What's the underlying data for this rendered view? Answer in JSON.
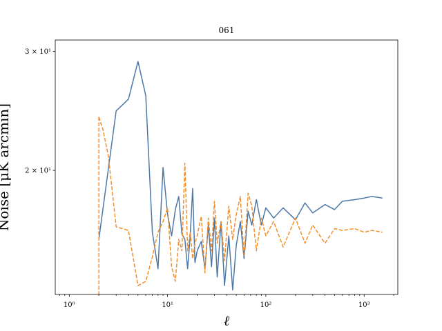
{
  "chart_data": {
    "type": "line",
    "title": "061",
    "xlabel": "ℓ",
    "ylabel": "Noise [μK arcmin]",
    "x_scale": "log",
    "y_scale": "log",
    "xlim": [
      0.72,
      2200
    ],
    "ylim": [
      13.1,
      31.2
    ],
    "grid": false,
    "legend": "none",
    "x_ticks": [
      {
        "value": 1,
        "label": "10⁰"
      },
      {
        "value": 10,
        "label": "10¹"
      },
      {
        "value": 100,
        "label": "10²"
      },
      {
        "value": 1000,
        "label": "10³"
      }
    ],
    "y_ticks": [
      {
        "value": 20,
        "label": "2 × 10¹"
      },
      {
        "value": 30,
        "label": "3 × 10¹"
      }
    ],
    "series": [
      {
        "color": "#4c78a8",
        "style": "solid",
        "x": [
          2,
          3,
          4,
          5,
          6,
          7,
          8,
          9,
          10,
          11,
          12,
          13,
          14,
          15,
          16,
          17,
          18,
          19,
          20,
          22,
          24,
          26,
          28,
          30,
          32,
          35,
          38,
          42,
          46,
          50,
          55,
          60,
          66,
          72,
          80,
          90,
          100,
          120,
          150,
          200,
          250,
          300,
          400,
          500,
          600,
          800,
          1000,
          1200,
          1535
        ],
        "y": [
          15.8,
          24.5,
          25.5,
          29.0,
          25.8,
          16.2,
          14.3,
          20.2,
          17.2,
          16.0,
          17.5,
          18.3,
          16.1,
          15.8,
          14.3,
          16.0,
          18.8,
          14.6,
          15.2,
          15.7,
          14.3,
          16.6,
          14.4,
          17.0,
          13.9,
          16.8,
          13.5,
          16.0,
          13.3,
          15.5,
          16.8,
          14.8,
          17.4,
          16.6,
          18.1,
          16.6,
          17.6,
          17.0,
          17.6,
          16.9,
          17.9,
          17.3,
          17.8,
          17.5,
          18.0,
          18.1,
          18.2,
          18.3,
          18.2
        ]
      },
      {
        "color": "#f28e2b",
        "style": "dashed",
        "x": [
          2,
          2.2,
          2.5,
          3,
          4,
          5,
          6,
          7,
          8,
          9,
          10,
          11,
          12,
          13,
          14,
          15,
          16,
          17,
          18,
          19,
          20,
          22,
          24,
          26,
          28,
          30,
          32,
          35,
          38,
          42,
          46,
          50,
          55,
          60,
          66,
          72,
          80,
          90,
          100,
          120,
          150,
          200,
          250,
          300,
          400,
          500,
          600,
          800,
          1000,
          1200,
          1535
        ],
        "y": [
          24.0,
          23.0,
          21.0,
          16.5,
          16.3,
          13.5,
          13.7,
          14.9,
          16.2,
          16.8,
          17.6,
          14.4,
          13.7,
          15.8,
          15.2,
          20.5,
          15.2,
          16.2,
          14.8,
          15.6,
          16.0,
          17.1,
          14.1,
          17.0,
          15.2,
          18.0,
          15.6,
          16.8,
          14.7,
          17.7,
          15.8,
          17.2,
          18.3,
          14.9,
          18.5,
          17.7,
          15.2,
          17.0,
          16.0,
          16.8,
          15.4,
          17.0,
          15.6,
          16.6,
          15.6,
          16.4,
          16.3,
          16.4,
          16.2,
          16.3,
          16.2
        ]
      }
    ]
  }
}
